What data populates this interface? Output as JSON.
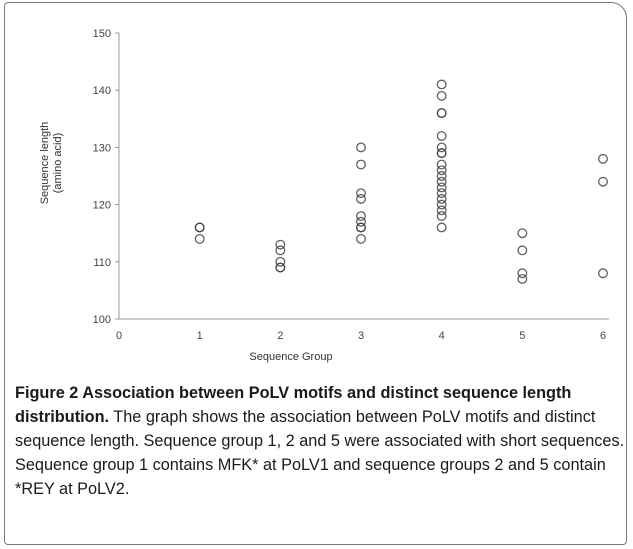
{
  "chart_data": {
    "type": "scatter",
    "title": "",
    "xlabel": "Sequence Group",
    "ylabel": "Sequence length",
    "ylabel_unit": "(amino acid)",
    "xlim": [
      0,
      6
    ],
    "ylim": [
      100,
      150
    ],
    "xticks": [
      0,
      1,
      2,
      3,
      4,
      5,
      6
    ],
    "yticks": [
      100,
      110,
      120,
      130,
      140,
      150
    ],
    "grid": false,
    "marker": "open-circle",
    "marker_color": "#444444",
    "series": [
      {
        "points": [
          {
            "x": 1,
            "y": 116
          },
          {
            "x": 1,
            "y": 116
          },
          {
            "x": 1,
            "y": 114
          },
          {
            "x": 2,
            "y": 113
          },
          {
            "x": 2,
            "y": 112
          },
          {
            "x": 2,
            "y": 110
          },
          {
            "x": 2,
            "y": 109
          },
          {
            "x": 2,
            "y": 109
          },
          {
            "x": 3,
            "y": 130
          },
          {
            "x": 3,
            "y": 127
          },
          {
            "x": 3,
            "y": 122
          },
          {
            "x": 3,
            "y": 121
          },
          {
            "x": 3,
            "y": 118
          },
          {
            "x": 3,
            "y": 117
          },
          {
            "x": 3,
            "y": 116
          },
          {
            "x": 3,
            "y": 116
          },
          {
            "x": 3,
            "y": 114
          },
          {
            "x": 4,
            "y": 141
          },
          {
            "x": 4,
            "y": 139
          },
          {
            "x": 4,
            "y": 136
          },
          {
            "x": 4,
            "y": 136
          },
          {
            "x": 4,
            "y": 132
          },
          {
            "x": 4,
            "y": 130
          },
          {
            "x": 4,
            "y": 129
          },
          {
            "x": 4,
            "y": 129
          },
          {
            "x": 4,
            "y": 127
          },
          {
            "x": 4,
            "y": 126
          },
          {
            "x": 4,
            "y": 125
          },
          {
            "x": 4,
            "y": 124
          },
          {
            "x": 4,
            "y": 123
          },
          {
            "x": 4,
            "y": 122
          },
          {
            "x": 4,
            "y": 121
          },
          {
            "x": 4,
            "y": 120
          },
          {
            "x": 4,
            "y": 119
          },
          {
            "x": 4,
            "y": 118
          },
          {
            "x": 4,
            "y": 116
          },
          {
            "x": 5,
            "y": 115
          },
          {
            "x": 5,
            "y": 112
          },
          {
            "x": 5,
            "y": 108
          },
          {
            "x": 5,
            "y": 107
          },
          {
            "x": 6,
            "y": 128
          },
          {
            "x": 6,
            "y": 124
          },
          {
            "x": 6,
            "y": 108
          }
        ]
      }
    ]
  },
  "caption": {
    "title": "Figure 2 Association between PoLV motifs and distinct sequence length distribution.",
    "body": "The graph shows the association between PoLV motifs and distinct sequence length. Sequence group 1, 2 and 5 were associated with short sequences. Sequence group 1 contains MFK* at PoLV1 and sequence groups 2 and 5 contain *REY at PoLV2."
  }
}
